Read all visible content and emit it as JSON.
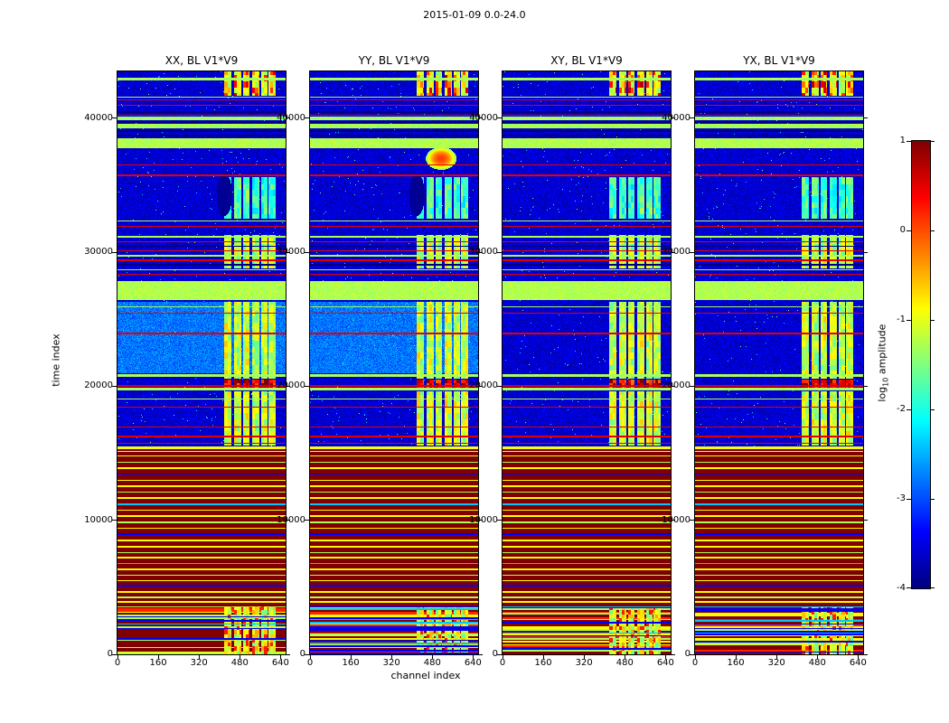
{
  "figure": {
    "title": "2015-01-09 0.0-24.0",
    "xlabel": "channel index",
    "ylabel": "time index",
    "colorbar": {
      "label_pre": "log",
      "label_sub": "10",
      "label_post": " amplitude"
    }
  },
  "chart_data": {
    "type": "heatmap",
    "title": "2015-01-09 0.0-24.0",
    "xlabel": "channel index",
    "ylabel": "time index",
    "value_label": "log10 amplitude",
    "colormap": "jet",
    "value_range": [
      -4,
      1
    ],
    "x_range": [
      0,
      660
    ],
    "y_range": [
      0,
      43500
    ],
    "x_ticks": [
      0,
      160,
      320,
      480,
      640
    ],
    "y_ticks": [
      0,
      10000,
      20000,
      30000,
      40000
    ],
    "colorbar_ticks": [
      1,
      0,
      -1,
      -2,
      -3,
      -4
    ],
    "panels": [
      {
        "title": "XX, BL V1*V9",
        "cyan_window": true,
        "smudge": true,
        "blob": false,
        "seed": 1
      },
      {
        "title": "YY, BL V1*V9",
        "cyan_window": true,
        "smudge": true,
        "blob": true,
        "seed": 2
      },
      {
        "title": "XY, BL V1*V9",
        "cyan_window": false,
        "smudge": false,
        "blob": false,
        "seed": 3
      },
      {
        "title": "YX, BL V1*V9",
        "cyan_window": false,
        "smudge": false,
        "blob": false,
        "seed": 4
      }
    ],
    "features": {
      "striped_bottom_t": 3600,
      "stripe_period": 110,
      "saturated_t": [
        3600,
        15500
      ],
      "saturated_value": 1.0,
      "quiet_value": -3.6,
      "cyan_window_t": [
        21000,
        26300
      ],
      "cyan_value": -2.8,
      "band": {
        "channels": [
          418,
          620
        ],
        "gaps": [
          [
            448,
            457
          ],
          [
            487,
            493
          ],
          [
            519,
            528
          ],
          [
            556,
            565
          ],
          [
            588,
            593
          ]
        ],
        "cell_t": 450,
        "cell_c": 12
      },
      "band_segments": [
        {
          "t": [
            15600,
            19650
          ],
          "v": -1.1,
          "hot": false
        },
        {
          "t": [
            19800,
            20500
          ],
          "v": 0.35,
          "hot": true
        },
        {
          "t": [
            20600,
            26300
          ],
          "v": -1.15,
          "hot": false
        },
        {
          "t": [
            28800,
            31300
          ],
          "v": -1.2,
          "hot": false
        },
        {
          "t": [
            32500,
            35600
          ],
          "v": -1.8,
          "hot": false
        },
        {
          "t": [
            41700,
            43500
          ],
          "v": -0.95,
          "hot": true
        }
      ],
      "green_bands": [
        [
          19700,
          19900,
          -1.3
        ],
        [
          20700,
          20900,
          -1.3
        ],
        [
          26450,
          27850,
          -1.25
        ],
        [
          37750,
          38500,
          -1.25
        ],
        [
          39250,
          39600,
          -1.3
        ],
        [
          39850,
          40100,
          -1.3
        ],
        [
          42850,
          43000,
          -1.3
        ]
      ],
      "sat_stripes": [
        [
          3900,
          -0.9,
          120
        ],
        [
          4250,
          -1.3,
          100
        ],
        [
          4650,
          -0.85,
          100
        ],
        [
          5100,
          -3.4,
          120
        ],
        [
          5500,
          -0.9,
          100
        ],
        [
          5900,
          -1.3,
          90
        ],
        [
          6350,
          -0.85,
          130
        ],
        [
          6800,
          -2.4,
          90
        ],
        [
          7200,
          -0.9,
          110
        ],
        [
          7600,
          -1.3,
          90
        ],
        [
          8050,
          -0.85,
          120
        ],
        [
          8500,
          -0.9,
          90
        ],
        [
          8950,
          -3.4,
          110
        ],
        [
          9400,
          -0.85,
          100
        ],
        [
          9850,
          -1.3,
          90
        ],
        [
          10300,
          -0.9,
          120
        ],
        [
          10750,
          -0.85,
          90
        ],
        [
          11200,
          -2.4,
          100
        ],
        [
          11650,
          -0.9,
          110
        ],
        [
          12100,
          -1.3,
          90
        ],
        [
          12550,
          -0.85,
          120
        ],
        [
          13000,
          -0.9,
          90
        ],
        [
          13450,
          -3.4,
          100
        ],
        [
          13900,
          -0.85,
          110
        ],
        [
          14350,
          -1.3,
          90
        ],
        [
          14800,
          -0.9,
          100
        ],
        [
          15150,
          -0.85,
          90
        ],
        [
          15400,
          -0.9,
          160
        ]
      ],
      "h_lines": [
        [
          15750,
          0.5,
          90
        ],
        [
          16250,
          0.5,
          90
        ],
        [
          16950,
          0.5,
          90
        ],
        [
          18450,
          0.5,
          90
        ],
        [
          19050,
          -1.3,
          90
        ],
        [
          20000,
          0.55,
          140
        ],
        [
          23950,
          0.5,
          90
        ],
        [
          25450,
          0.5,
          90
        ],
        [
          25950,
          -1.3,
          90
        ],
        [
          28350,
          0.5,
          90
        ],
        [
          28700,
          -1.3,
          90
        ],
        [
          29050,
          -4,
          110
        ],
        [
          29400,
          0.5,
          90
        ],
        [
          29750,
          -1.3,
          90
        ],
        [
          30100,
          0.5,
          90
        ],
        [
          30450,
          -4,
          110
        ],
        [
          30800,
          0.5,
          90
        ],
        [
          31150,
          -1.3,
          90
        ],
        [
          31950,
          0.5,
          90
        ],
        [
          32350,
          -1.3,
          90
        ],
        [
          35750,
          0.5,
          90
        ],
        [
          36500,
          0.5,
          90
        ],
        [
          38700,
          -4,
          110
        ],
        [
          39050,
          -4,
          110
        ],
        [
          39720,
          -4,
          110
        ],
        [
          40250,
          0.5,
          90
        ],
        [
          40470,
          -4,
          110
        ],
        [
          40950,
          0.5,
          90
        ],
        [
          41380,
          0.5,
          90
        ],
        [
          41600,
          -1.3,
          90
        ]
      ],
      "smudge": {
        "c": 420,
        "rc": 30,
        "t": 34300,
        "rt": 1600
      },
      "blob": {
        "c": 515,
        "rc": 60,
        "t": 37000,
        "rt": 850
      }
    }
  }
}
